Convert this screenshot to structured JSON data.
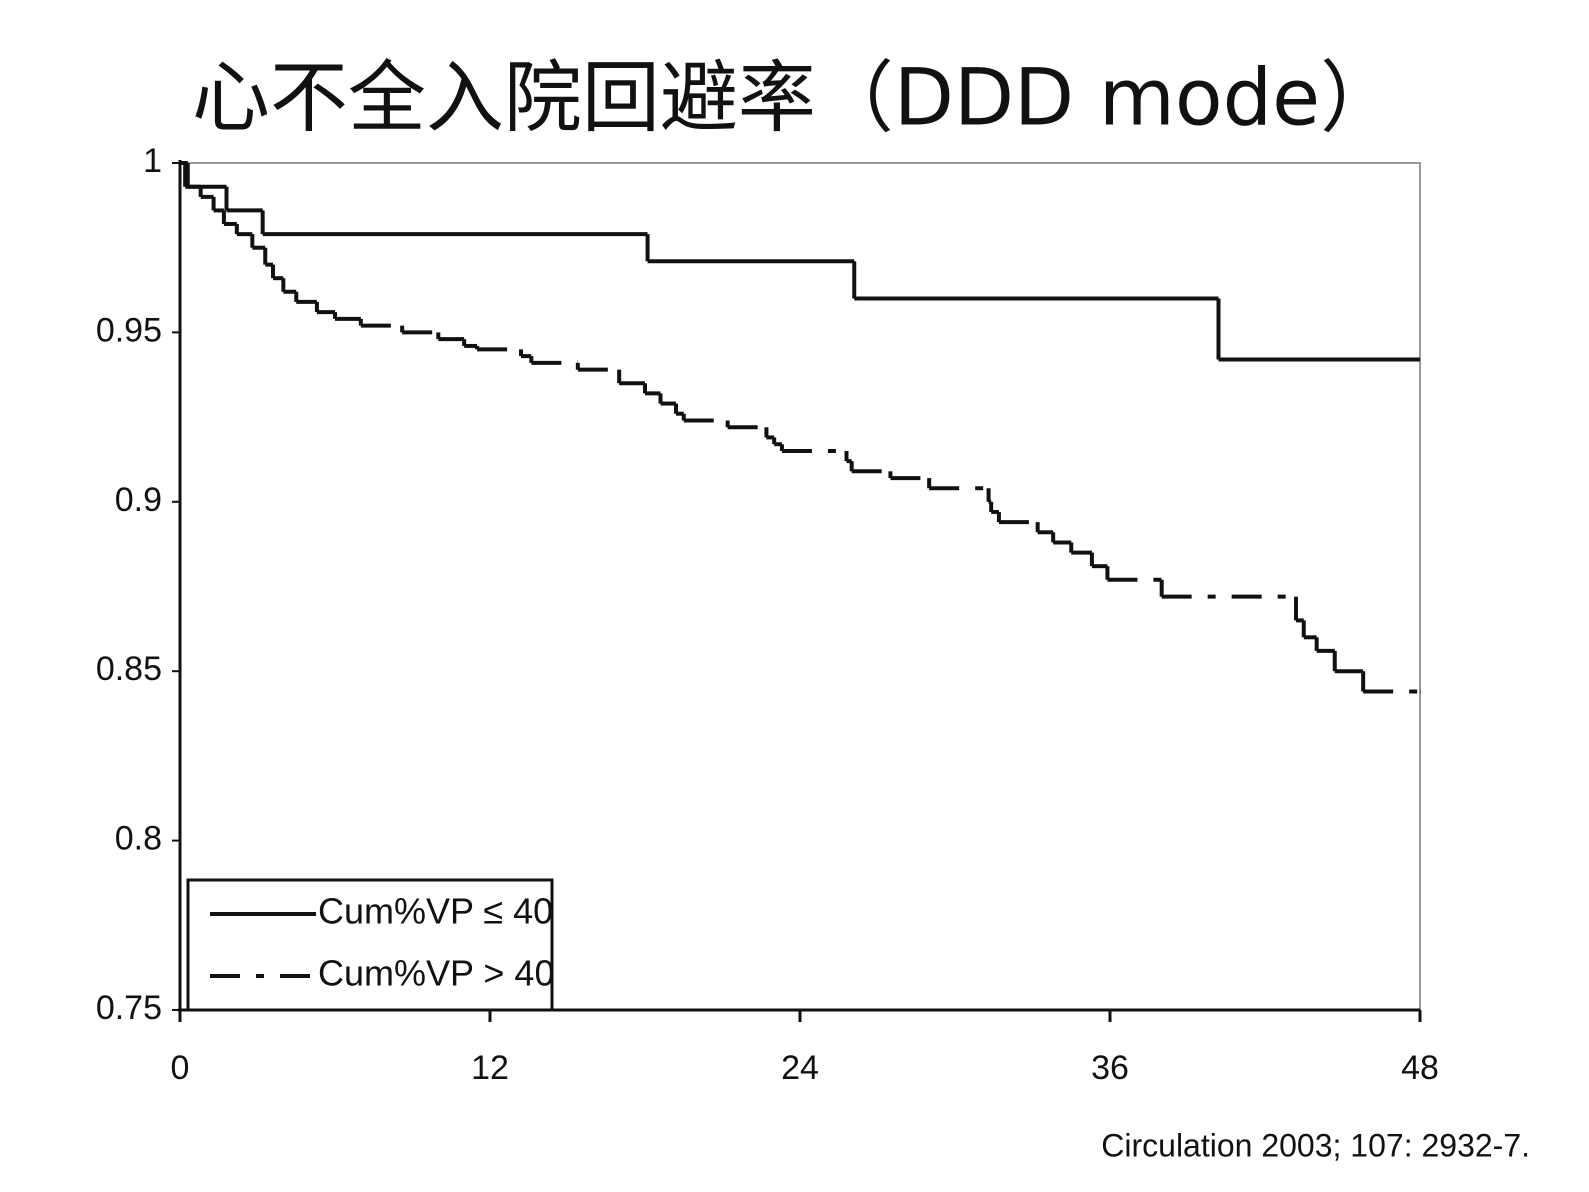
{
  "chart_data": {
    "type": "line",
    "step": "post",
    "title": "心不全入院回避率（DDD mode）",
    "citation": "Circulation 2003; 107: 2932-7.",
    "xlim": [
      0,
      48
    ],
    "xticks": [
      0,
      12,
      24,
      36,
      48
    ],
    "ylim": [
      0.75,
      1
    ],
    "yticks": [
      0.75,
      0.8,
      0.85,
      0.9,
      0.95,
      1
    ],
    "legend": "lower left",
    "series": [
      {
        "name": "Cum%VP ≤ 40",
        "color": "#111111",
        "line_style": "solid",
        "x": [
          0,
          0.3,
          1.8,
          3.2,
          18.1,
          26.1,
          40.2,
          48
        ],
        "values": [
          1,
          0.993,
          0.986,
          0.979,
          0.971,
          0.96,
          0.942,
          0.942
        ]
      },
      {
        "name": "Cum%VP > 40",
        "color": "#111111",
        "line_style": "dash-dot",
        "x": [
          0,
          0.2,
          0.8,
          1.3,
          1.7,
          2.2,
          2.8,
          3.3,
          3.6,
          4.0,
          4.5,
          5.3,
          6.0,
          7.0,
          8.6,
          10.0,
          11.0,
          11.5,
          13.2,
          13.6,
          15.4,
          17.0,
          18.0,
          18.6,
          19.2,
          19.5,
          21.2,
          22.7,
          23.0,
          23.3,
          25.8,
          26.0,
          27.5,
          29.0,
          31.3,
          31.4,
          31.7,
          33.2,
          33.8,
          34.5,
          35.3,
          35.9,
          38.0,
          43.2,
          43.5,
          44.0,
          44.7,
          45.8,
          48
        ],
        "values": [
          1,
          0.993,
          0.99,
          0.986,
          0.982,
          0.979,
          0.975,
          0.97,
          0.966,
          0.962,
          0.959,
          0.956,
          0.954,
          0.952,
          0.95,
          0.948,
          0.946,
          0.945,
          0.943,
          0.941,
          0.939,
          0.935,
          0.932,
          0.929,
          0.926,
          0.924,
          0.922,
          0.919,
          0.917,
          0.915,
          0.912,
          0.909,
          0.907,
          0.904,
          0.9,
          0.897,
          0.894,
          0.891,
          0.888,
          0.885,
          0.881,
          0.877,
          0.872,
          0.865,
          0.86,
          0.856,
          0.85,
          0.844,
          0.844
        ]
      }
    ]
  }
}
